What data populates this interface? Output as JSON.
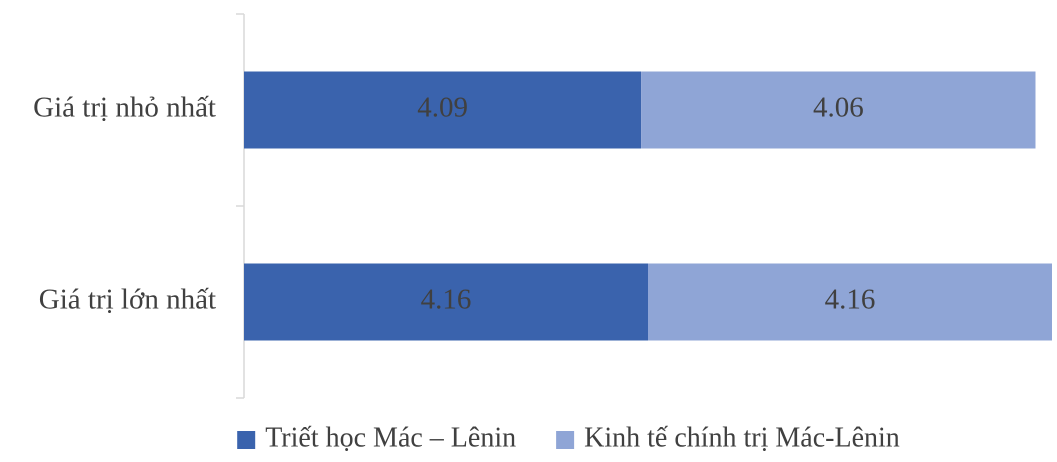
{
  "chart_data": {
    "type": "bar",
    "orientation": "horizontal",
    "stacked": true,
    "categories": [
      "Giá trị nhỏ nhất",
      "Giá trị lớn nhất"
    ],
    "series": [
      {
        "name": "Triết học Mác – Lênin",
        "values": [
          4.09,
          4.16
        ],
        "color": "#3a63ad"
      },
      {
        "name": "Kinh tế chính trị Mác-Lênin",
        "values": [
          4.06,
          4.16
        ],
        "color": "#8fa5d6"
      }
    ],
    "data_labels": true,
    "grid": false,
    "legend_position": "bottom",
    "title": "",
    "xlabel": "",
    "ylabel": ""
  }
}
